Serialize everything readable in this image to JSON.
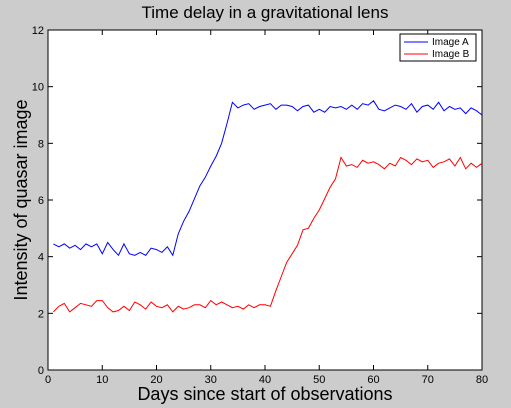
{
  "chart_data": {
    "type": "line",
    "title": "Time delay in a gravitational lens",
    "xlabel": "Days since start of observations",
    "ylabel": "Intensity of quasar image",
    "xlim": [
      0,
      80
    ],
    "ylim": [
      0,
      12
    ],
    "xticks": [
      0,
      10,
      20,
      30,
      40,
      50,
      60,
      70,
      80
    ],
    "yticks": [
      0,
      2,
      4,
      6,
      8,
      10,
      12
    ],
    "grid": false,
    "legend_position": "top-right",
    "x": [
      1,
      2,
      3,
      4,
      5,
      6,
      7,
      8,
      9,
      10,
      11,
      12,
      13,
      14,
      15,
      16,
      17,
      18,
      19,
      20,
      21,
      22,
      23,
      24,
      25,
      26,
      27,
      28,
      29,
      30,
      31,
      32,
      33,
      34,
      35,
      36,
      37,
      38,
      39,
      40,
      41,
      42,
      43,
      44,
      45,
      46,
      47,
      48,
      49,
      50,
      51,
      52,
      53,
      54,
      55,
      56,
      57,
      58,
      59,
      60,
      61,
      62,
      63,
      64,
      65,
      66,
      67,
      68,
      69,
      70,
      71,
      72,
      73,
      74,
      75,
      76,
      77,
      78,
      79,
      80
    ],
    "series": [
      {
        "name": "Image A",
        "color": "#0000ff",
        "values": [
          4.45,
          4.35,
          4.45,
          4.3,
          4.4,
          4.25,
          4.45,
          4.35,
          4.45,
          4.1,
          4.5,
          4.25,
          4.05,
          4.45,
          4.1,
          4.05,
          4.15,
          4.05,
          4.3,
          4.25,
          4.15,
          4.35,
          4.05,
          4.8,
          5.25,
          5.6,
          6.05,
          6.5,
          6.8,
          7.2,
          7.55,
          8.0,
          8.7,
          9.45,
          9.25,
          9.35,
          9.4,
          9.2,
          9.3,
          9.35,
          9.4,
          9.2,
          9.35,
          9.35,
          9.3,
          9.15,
          9.3,
          9.35,
          9.1,
          9.2,
          9.1,
          9.3,
          9.25,
          9.3,
          9.2,
          9.35,
          9.2,
          9.4,
          9.35,
          9.5,
          9.2,
          9.15,
          9.25,
          9.35,
          9.3,
          9.2,
          9.4,
          9.1,
          9.3,
          9.35,
          9.2,
          9.45,
          9.15,
          9.3,
          9.2,
          9.25,
          9.05,
          9.25,
          9.15,
          9.0
        ]
      },
      {
        "name": "Image B",
        "color": "#ff0000",
        "values": [
          2.05,
          2.25,
          2.35,
          2.05,
          2.2,
          2.35,
          2.3,
          2.25,
          2.45,
          2.45,
          2.2,
          2.05,
          2.1,
          2.25,
          2.1,
          2.4,
          2.3,
          2.15,
          2.4,
          2.25,
          2.2,
          2.3,
          2.05,
          2.25,
          2.15,
          2.2,
          2.3,
          2.3,
          2.2,
          2.45,
          2.3,
          2.4,
          2.3,
          2.2,
          2.25,
          2.15,
          2.3,
          2.2,
          2.3,
          2.3,
          2.25,
          2.8,
          3.3,
          3.8,
          4.1,
          4.4,
          4.95,
          5.0,
          5.35,
          5.65,
          6.05,
          6.45,
          6.75,
          7.5,
          7.2,
          7.25,
          7.15,
          7.4,
          7.3,
          7.35,
          7.25,
          7.1,
          7.3,
          7.2,
          7.5,
          7.4,
          7.25,
          7.45,
          7.35,
          7.4,
          7.15,
          7.3,
          7.35,
          7.45,
          7.2,
          7.5,
          7.1,
          7.3,
          7.15,
          7.3
        ]
      }
    ]
  }
}
